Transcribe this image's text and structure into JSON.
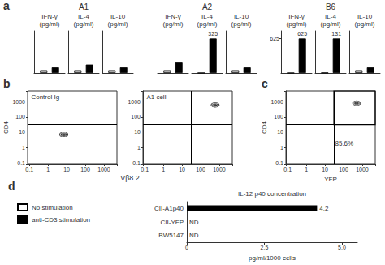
{
  "chart_data": [
    {
      "type": "bar",
      "title": "IFN-γ\n(pg/ml)",
      "subtitle": "A1",
      "annotations": [
        "a"
      ],
      "legend": "lower left",
      "series": [
        {
          "name": "No stimulation",
          "color": "#ffffff",
          "values": [
            1
          ]
        },
        {
          "name": "anti-CD3 stimulation",
          "color": "#000000",
          "values": [
            2
          ]
        }
      ],
      "ylim": [
        0,
        15
      ],
      "tick_labels": false
    },
    {
      "type": "bar",
      "title": "IL-4\n(pg/ml)",
      "series": [
        {
          "name": "No stimulation",
          "color": "#ffffff",
          "values": [
            1
          ]
        },
        {
          "name": "anti-CD3 stimulation",
          "color": "#000000",
          "values": [
            3
          ]
        }
      ],
      "ylim": [
        0,
        15
      ],
      "tick_labels": false
    },
    {
      "type": "bar",
      "title": "IL-10\n(pg/ml)",
      "series": [
        {
          "name": "No stimulation",
          "color": "#ffffff",
          "values": [
            1
          ]
        },
        {
          "name": "anti-CD3 stimulation",
          "color": "#000000",
          "values": [
            2
          ]
        }
      ],
      "ylim": [
        0,
        15
      ],
      "tick_labels": false
    },
    {
      "type": "bar",
      "title": "IFN-γ\n(pg/ml)",
      "subtitle": "A2",
      "series": [
        {
          "name": "No stimulation",
          "color": "#ffffff",
          "values": [
            1
          ]
        },
        {
          "name": "anti-CD3 stimulation",
          "color": "#000000",
          "values": [
            4
          ]
        }
      ],
      "ylim": [
        0,
        15
      ],
      "tick_labels": false
    },
    {
      "type": "bar",
      "title": "IL-4\n(pg/ml)",
      "series": [
        {
          "name": "No stimulation",
          "color": "#ffffff",
          "values": [
            1
          ]
        },
        {
          "name": "anti-CD3 stimulation",
          "color": "#000000",
          "values": [
            325
          ],
          "data_labels": true
        }
      ],
      "ylim": [
        0,
        396.5
      ],
      "tick_labels": false
    },
    {
      "type": "bar",
      "title": "IL-10\n(pg/ml)",
      "series": [
        {
          "name": "No stimulation",
          "color": "#ffffff",
          "values": [
            1
          ]
        },
        {
          "name": "anti-CD3 stimulation",
          "color": "#000000",
          "values": [
            2
          ]
        }
      ],
      "ylim": [
        0,
        15
      ],
      "tick_labels": false
    },
    {
      "type": "bar",
      "title": "IFN-γ\n(pg/ml)",
      "subtitle": "B6",
      "series": [
        {
          "name": "No stimulation",
          "color": "#ffffff",
          "values": [
            1
          ]
        },
        {
          "name": "anti-CD3 stimulation",
          "color": "#000000",
          "values": [
            625
          ],
          "data_labels": true
        }
      ],
      "ylim": [
        0,
        762.5
      ],
      "yticks": [
        625
      ],
      "tick_labels": "y"
    },
    {
      "type": "bar",
      "title": "IL-4\n(pg/ml)",
      "series": [
        {
          "name": "No stimulation",
          "color": "#ffffff",
          "values": [
            1
          ]
        },
        {
          "name": "anti-CD3 stimulation",
          "color": "#000000",
          "values": [
            131
          ],
          "data_labels": true
        }
      ],
      "ylim": [
        0,
        159.82
      ],
      "tick_labels": false
    },
    {
      "type": "bar",
      "title": "IL-10\n(pg/ml)",
      "series": [
        {
          "name": "No stimulation",
          "color": "#ffffff",
          "values": [
            1
          ]
        },
        {
          "name": "anti-CD3 stimulation",
          "color": "#000000",
          "values": [
            2
          ]
        }
      ],
      "ylim": [
        0,
        15
      ],
      "tick_labels": false
    },
    {
      "type": "scatter",
      "title": "Control Ig",
      "x": [
        7
      ],
      "values": [
        7
      ],
      "color": "#000000",
      "marker": "contour",
      "log": true,
      "xlim": [
        0.08,
        5000
      ],
      "ylim": [
        0.08,
        5000
      ],
      "xticks": [
        0.1,
        1,
        10,
        100,
        1000
      ],
      "yticks": [
        0.1,
        1,
        10,
        100,
        1000
      ],
      "ylabel": "CD4",
      "hlines": [
        30
      ],
      "vlines": [
        30
      ],
      "annotations": [
        "b",
        "Vβ8.2"
      ]
    },
    {
      "type": "scatter",
      "title": "A1 cell",
      "x": [
        600
      ],
      "values": [
        600
      ],
      "color": "#000000",
      "marker": "contour",
      "log": true,
      "xlim": [
        0.08,
        5000
      ],
      "ylim": [
        0.08,
        5000
      ],
      "xticks": [
        0.1,
        1,
        10,
        100,
        1000
      ],
      "yticks": [
        0.1,
        1,
        10,
        100,
        1000
      ],
      "hlines": [
        30
      ],
      "vlines": [
        30
      ]
    },
    {
      "type": "scatter",
      "x": [
        500
      ],
      "values": [
        800
      ],
      "color": "#000000",
      "marker": "contour",
      "log": true,
      "xlim": [
        0.08,
        5000
      ],
      "ylim": [
        0.08,
        5000
      ],
      "xticks": [
        0.1,
        1,
        10,
        100,
        1000
      ],
      "yticks": [
        0.1,
        1,
        10,
        100,
        1000
      ],
      "xlabel": "YFP",
      "ylabel": "CD4",
      "hlines": [
        30
      ],
      "vlines": [
        30
      ],
      "box": {
        "x": [
          30,
          5000
        ],
        "y": [
          30,
          5000
        ]
      },
      "annotations": [
        "c",
        "85.6%"
      ]
    },
    {
      "type": "bar",
      "orientation": "horizontal",
      "title": "IL-12 p40 concentration",
      "xlabel": "pg/ml/1000 cells",
      "categories": [
        "BW5147",
        "CII-YFP",
        "CII-A1p40"
      ],
      "values": [
        0,
        0,
        4.2
      ],
      "value_labels": [
        "ND",
        "ND",
        "4.2"
      ],
      "data_labels": true,
      "color": "#000000",
      "xlim": [
        0,
        5.5
      ],
      "xticks": [
        0,
        2.5,
        {
          "value": 5.0,
          "label": "5.0"
        }
      ],
      "annotations": [
        "d"
      ]
    }
  ]
}
